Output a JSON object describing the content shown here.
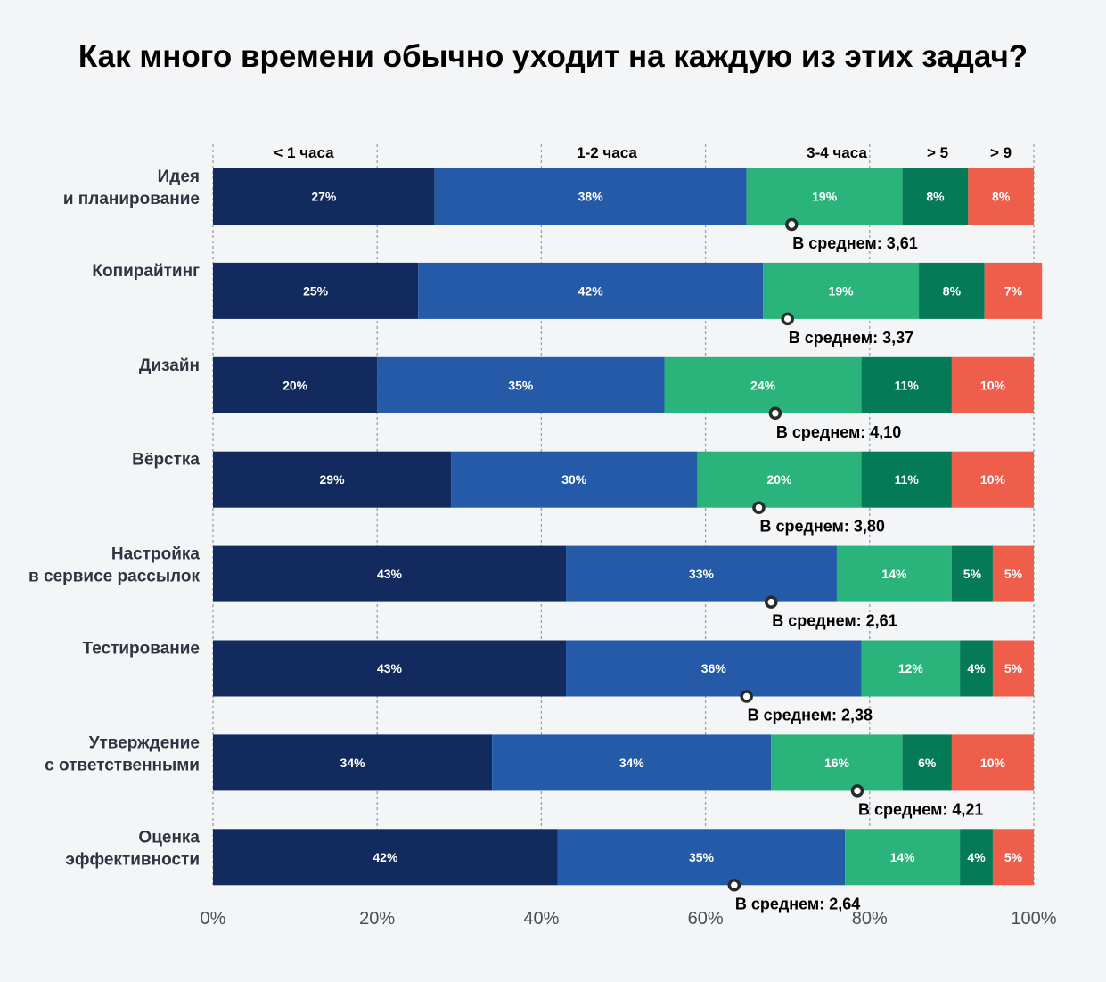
{
  "chart_data": {
    "type": "bar",
    "orientation": "horizontal",
    "stacked": true,
    "title": "Как много времени обычно уходит на каждую из этих задач?",
    "segment_labels": [
      "< 1 часа",
      "1-2 часа",
      "3-4 часа",
      "> 5",
      "> 9"
    ],
    "colors": [
      "#132a5e",
      "#245aa8",
      "#2bb37c",
      "#057a57",
      "#ef5d4b"
    ],
    "categories": [
      [
        "Идея",
        "и планирование"
      ],
      [
        "Копирайтинг"
      ],
      [
        "Дизайн"
      ],
      [
        "Вёрстка"
      ],
      [
        "Настройка",
        "в сервисе рассылок"
      ],
      [
        "Тестирование"
      ],
      [
        "Утверждение",
        "с ответственными"
      ],
      [
        "Оценка",
        "эффективности"
      ]
    ],
    "series": [
      {
        "name": "< 1 часа",
        "values": [
          27,
          25,
          20,
          29,
          43,
          43,
          34,
          42
        ]
      },
      {
        "name": "1-2 часа",
        "values": [
          38,
          42,
          35,
          30,
          33,
          36,
          34,
          35
        ]
      },
      {
        "name": "3-4 часа",
        "values": [
          19,
          19,
          24,
          20,
          14,
          12,
          16,
          14
        ]
      },
      {
        "name": "> 5",
        "values": [
          8,
          8,
          11,
          11,
          5,
          4,
          6,
          4
        ]
      },
      {
        "name": "> 9",
        "values": [
          8,
          7,
          10,
          10,
          5,
          5,
          10,
          5
        ]
      }
    ],
    "averages": [
      3.61,
      3.37,
      4.1,
      3.8,
      2.61,
      2.38,
      4.21,
      2.64
    ],
    "average_labels": [
      "В среднем: 3,61",
      "В среднем: 3,37",
      "В среднем: 4,10",
      "В среднем: 3,80",
      "В среднем: 2,61",
      "В среднем: 2,38",
      "В среднем: 4,21",
      "В среднем: 2,64"
    ],
    "average_marker_pct": [
      70.5,
      70,
      68.5,
      66.5,
      68,
      65,
      78.5,
      63.5
    ],
    "xlim": [
      0,
      100
    ],
    "xticks": [
      "0%",
      "20%",
      "40%",
      "60%",
      "80%",
      "100%"
    ],
    "grid": true
  }
}
